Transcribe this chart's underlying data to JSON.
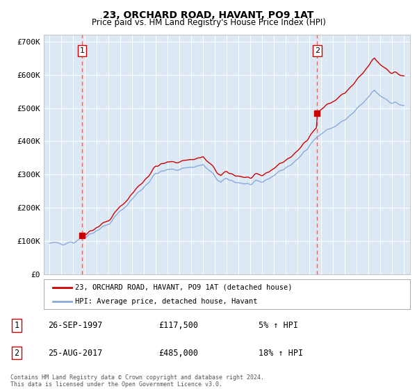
{
  "title": "23, ORCHARD ROAD, HAVANT, PO9 1AT",
  "subtitle": "Price paid vs. HM Land Registry's House Price Index (HPI)",
  "ylim": [
    0,
    720000
  ],
  "yticks": [
    0,
    100000,
    200000,
    300000,
    400000,
    500000,
    600000,
    700000
  ],
  "ytick_labels": [
    "£0",
    "£100K",
    "£200K",
    "£300K",
    "£400K",
    "£500K",
    "£600K",
    "£700K"
  ],
  "background_color": "#dce9f5",
  "line_color_red": "#cc0000",
  "line_color_blue": "#88aadd",
  "marker_color": "#cc0000",
  "vline_color": "#dd6666",
  "annotation_border_color": "#cc0000",
  "legend_label_red": "23, ORCHARD ROAD, HAVANT, PO9 1AT (detached house)",
  "legend_label_blue": "HPI: Average price, detached house, Havant",
  "sale1_date": 1997.73,
  "sale1_price": 117500,
  "sale2_date": 2017.64,
  "sale2_price": 485000,
  "table_rows": [
    [
      "1",
      "26-SEP-1997",
      "£117,500",
      "5% ↑ HPI"
    ],
    [
      "2",
      "25-AUG-2017",
      "£485,000",
      "18% ↑ HPI"
    ]
  ],
  "footer": "Contains HM Land Registry data © Crown copyright and database right 2024.\nThis data is licensed under the Open Government Licence v3.0.",
  "xmin": 1994.5,
  "xmax": 2025.5
}
